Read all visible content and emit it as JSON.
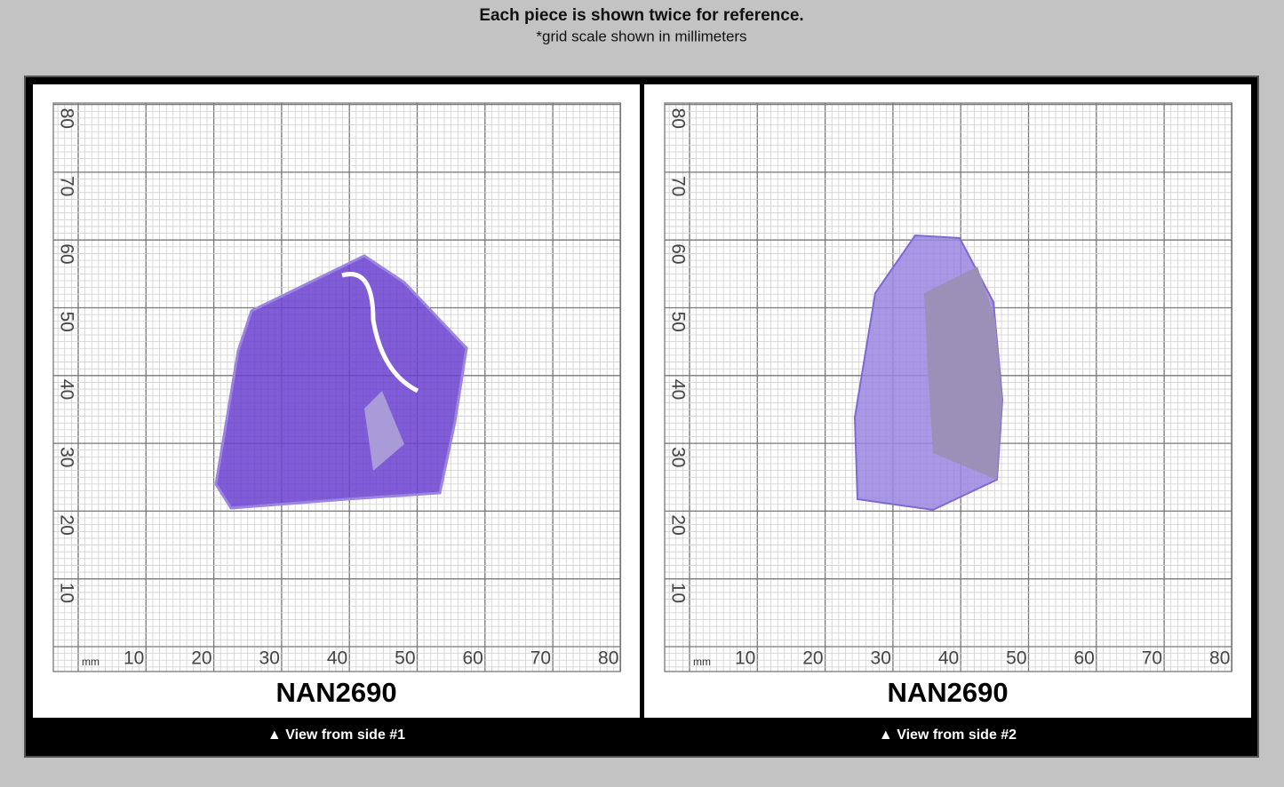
{
  "header": {
    "title": "Each piece is shown twice for reference.",
    "subtitle": "*grid scale shown in millimeters"
  },
  "panels": [
    {
      "unit": "mm",
      "x_labels": [
        10,
        20,
        30,
        40,
        50,
        60,
        70,
        80
      ],
      "y_labels": [
        10,
        20,
        30,
        40,
        50,
        60,
        70,
        80
      ],
      "label": "NAN2690",
      "caption": "▲ View from side #1"
    },
    {
      "unit": "mm",
      "x_labels": [
        10,
        20,
        30,
        40,
        50,
        60,
        70,
        80
      ],
      "y_labels": [
        10,
        20,
        30,
        40,
        50,
        60,
        70,
        80
      ],
      "label": "NAN2690",
      "caption": "▲ View from side #2"
    }
  ]
}
